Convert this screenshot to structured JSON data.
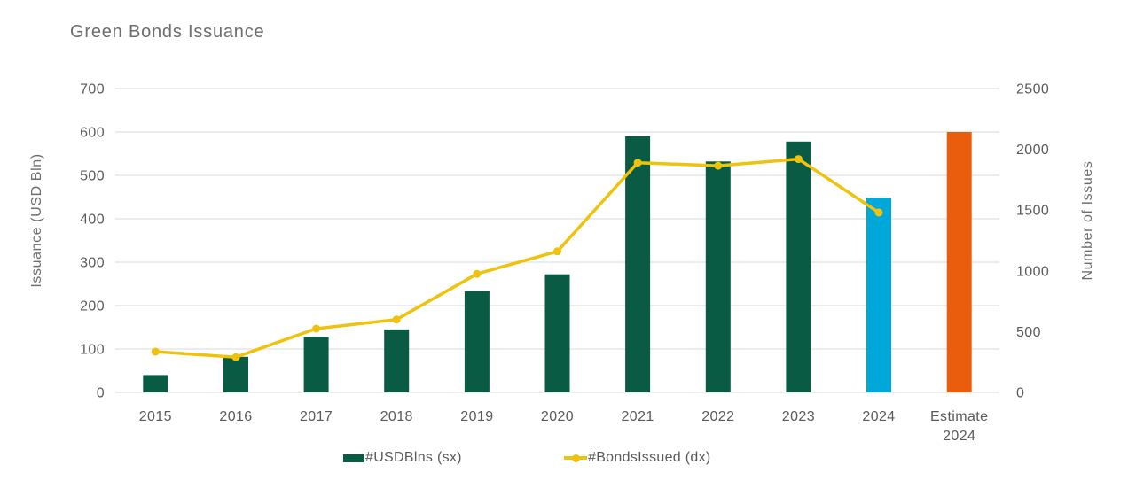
{
  "page": {
    "title": "Green Bonds Issuance"
  },
  "chart_data": {
    "type": "combo-bar-line",
    "title": "Green Bonds Issuance",
    "categories": [
      "2015",
      "2016",
      "2017",
      "2018",
      "2019",
      "2020",
      "2021",
      "2022",
      "2023",
      "2024",
      "Estimate 2024"
    ],
    "series": [
      {
        "name": "#USDBlns (sx)",
        "type": "bar",
        "axis": "left",
        "values": [
          40,
          82,
          128,
          145,
          233,
          272,
          590,
          532,
          578,
          448,
          600
        ]
      },
      {
        "name": "#BondsIssued (dx)",
        "type": "line",
        "axis": "right",
        "values": [
          335,
          290,
          525,
          600,
          975,
          1160,
          1890,
          1865,
          1920,
          1480,
          null
        ]
      }
    ],
    "left_axis": {
      "title": "Issuance (USD Bln)",
      "min": 0,
      "max": 700,
      "step": 100
    },
    "right_axis": {
      "title": "Number of Issues",
      "min": 0,
      "max": 2500,
      "step": 500
    },
    "grid": "horizontal",
    "legend_position": "bottom",
    "colors": {
      "bar_default": "#095b43",
      "bar_2024": "#00a8d9",
      "bar_estimate_2024": "#ea5d0d",
      "line": "#efc20e",
      "gridline": "#d9d9d9",
      "text": "#5a5a5a",
      "title_text": "#6d6d6d"
    },
    "bar_color_overrides": {
      "9": "#00a8d9",
      "10": "#ea5d0d"
    }
  }
}
